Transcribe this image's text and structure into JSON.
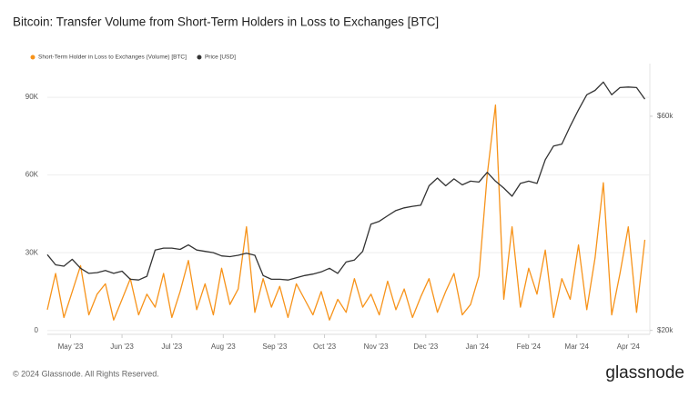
{
  "chart_data": {
    "type": "line",
    "title": "Bitcoin: Transfer Volume from Short-Term Holders in Loss to Exchanges [BTC]",
    "footer": "© 2024 Glassnode. All Rights Reserved.",
    "brand": "glassnode",
    "x": [
      -14,
      -9,
      -4,
      1,
      6,
      11,
      16,
      21,
      26,
      31,
      36,
      41,
      46,
      51,
      56,
      61,
      66,
      71,
      76,
      81,
      86,
      91,
      96,
      101,
      106,
      111,
      116,
      121,
      126,
      131,
      136,
      141,
      146,
      151,
      156,
      161,
      166,
      171,
      176,
      181,
      186,
      191,
      196,
      201,
      206,
      211,
      216,
      221,
      226,
      231,
      236,
      241,
      246,
      251,
      256,
      261,
      266,
      271,
      276,
      281,
      286,
      291,
      296,
      301,
      306,
      311,
      316,
      321,
      326,
      331,
      336,
      341,
      346
    ],
    "xlim": [
      -14,
      349
    ],
    "xticks": [
      {
        "value": 0,
        "label": "May '23"
      },
      {
        "value": 31,
        "label": "Jun '23"
      },
      {
        "value": 61,
        "label": "Jul '23"
      },
      {
        "value": 92,
        "label": "Aug '23"
      },
      {
        "value": 123,
        "label": "Sep '23"
      },
      {
        "value": 153,
        "label": "Oct '23"
      },
      {
        "value": 184,
        "label": "Nov '23"
      },
      {
        "value": 214,
        "label": "Dec '23"
      },
      {
        "value": 245,
        "label": "Jan '24"
      },
      {
        "value": 276,
        "label": "Feb '24"
      },
      {
        "value": 305,
        "label": "Mar '24"
      },
      {
        "value": 336,
        "label": "Apr '24"
      }
    ],
    "ylim": [
      -1500,
      103000
    ],
    "yticks": [
      0,
      {
        "value": 30000,
        "label": "30K"
      },
      {
        "value": 60000,
        "label": "60K"
      },
      {
        "value": 90000,
        "label": "90K"
      }
    ],
    "y2lim": [
      19600,
      78600
    ],
    "y2scale": "log",
    "y2ticks": [
      {
        "value": 20000,
        "label": "$20k"
      },
      {
        "value": 60000,
        "label": "$60k"
      }
    ],
    "grid": true,
    "legend": "top-left",
    "series": [
      {
        "name": "Short-Term Holder in Loss to Exchanges (Volume) [BTC]",
        "color": "#f7931a",
        "values": [
          8000,
          22000,
          5000,
          15000,
          25000,
          6000,
          14000,
          18000,
          4000,
          12000,
          20000,
          6000,
          14000,
          9000,
          22000,
          5000,
          15000,
          27000,
          8000,
          18000,
          6000,
          24000,
          10000,
          16000,
          40000,
          7000,
          20000,
          9000,
          17000,
          5000,
          18000,
          12000,
          6000,
          15000,
          4000,
          12000,
          7000,
          20000,
          9000,
          14000,
          6000,
          19000,
          8000,
          16000,
          5000,
          13000,
          20000,
          7000,
          15000,
          22000,
          6000,
          10000,
          21000,
          60000,
          87000,
          12000,
          40000,
          9000,
          24000,
          14000,
          31000,
          5000,
          20000,
          12000,
          33000,
          8000,
          28000,
          57000,
          6000,
          22000,
          40000,
          7000,
          35000
        ]
      },
      {
        "name": "Price [USD]",
        "color": "#333333",
        "axis": "y2",
        "values": [
          29500,
          28000,
          27800,
          28800,
          27500,
          26800,
          26900,
          27200,
          26800,
          27100,
          26000,
          25900,
          26400,
          30200,
          30500,
          30500,
          30300,
          31000,
          30200,
          30000,
          29800,
          29300,
          29200,
          29400,
          29700,
          29400,
          26500,
          26000,
          26000,
          25900,
          26200,
          26500,
          26700,
          27000,
          27500,
          26800,
          28400,
          28700,
          30000,
          34500,
          35000,
          36000,
          37000,
          37500,
          37800,
          38000,
          42000,
          43700,
          42000,
          43500,
          42200,
          43000,
          42800,
          45000,
          43000,
          41500,
          39800,
          42500,
          43000,
          42500,
          48000,
          51500,
          52000,
          57000,
          62000,
          67000,
          68500,
          71500,
          67000,
          69500,
          69700,
          69500,
          65500
        ]
      }
    ]
  }
}
